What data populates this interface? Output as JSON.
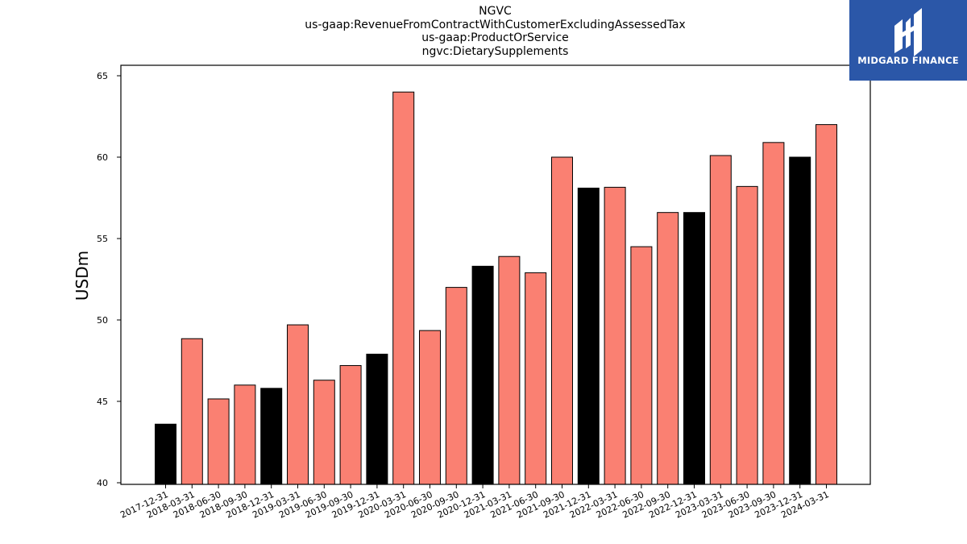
{
  "header": {
    "title_lines": [
      "NGVC",
      "us-gaap:RevenueFromContractWithCustomerExcludingAssessedTax",
      "us-gaap:ProductOrService",
      "ngvc:DietarySupplements"
    ]
  },
  "logo": {
    "text": "MIDGARD FINANCE",
    "background": "#2b57a8"
  },
  "chart_data": {
    "type": "bar",
    "title": "NGVC\nus-gaap:RevenueFromContractWithCustomerExcludingAssessedTax\nus-gaap:ProductOrService\nngvc:DietarySupplements",
    "xlabel": "",
    "ylabel": "USDm",
    "ylim": [
      40,
      65
    ],
    "yticks": [
      40,
      45,
      50,
      55,
      60,
      65
    ],
    "grid": false,
    "categories": [
      "2017-12-31",
      "2018-03-31",
      "2018-06-30",
      "2018-09-30",
      "2018-12-31",
      "2019-03-31",
      "2019-06-30",
      "2019-09-30",
      "2019-12-31",
      "2020-03-31",
      "2020-06-30",
      "2020-09-30",
      "2020-12-31",
      "2021-03-31",
      "2021-06-30",
      "2021-09-30",
      "2021-12-31",
      "2022-03-31",
      "2022-06-30",
      "2022-09-30",
      "2022-12-31",
      "2023-03-31",
      "2023-06-30",
      "2023-09-30",
      "2023-12-31",
      "2024-03-31"
    ],
    "values": [
      43.6,
      48.85,
      45.15,
      46.0,
      45.8,
      49.7,
      46.3,
      47.2,
      47.9,
      64.0,
      49.35,
      52.0,
      53.3,
      53.9,
      52.9,
      60.0,
      58.1,
      58.15,
      54.5,
      56.6,
      56.6,
      60.1,
      58.2,
      60.9,
      60.0,
      62.0
    ],
    "bar_colors": [
      "#000000",
      "#fa8072",
      "#fa8072",
      "#fa8072",
      "#000000",
      "#fa8072",
      "#fa8072",
      "#fa8072",
      "#000000",
      "#fa8072",
      "#fa8072",
      "#fa8072",
      "#000000",
      "#fa8072",
      "#fa8072",
      "#fa8072",
      "#000000",
      "#fa8072",
      "#fa8072",
      "#fa8072",
      "#000000",
      "#fa8072",
      "#fa8072",
      "#fa8072",
      "#000000",
      "#fa8072"
    ],
    "colors": {
      "q4": "#000000",
      "other": "#fa8072",
      "edge": "#000000"
    }
  }
}
